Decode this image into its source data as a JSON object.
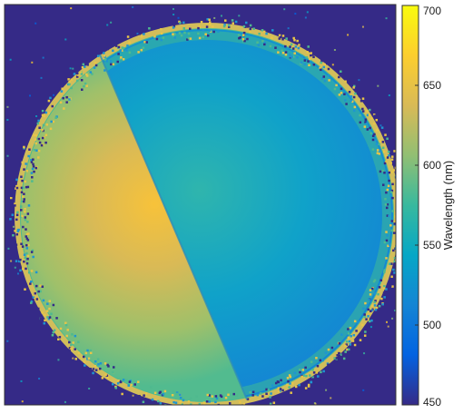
{
  "chart_data": {
    "type": "heatmap",
    "title": "",
    "xlabel": "",
    "ylabel": "",
    "colorbar": {
      "label": "Wavelength (nm)",
      "range": [
        450,
        700
      ],
      "ticks": [
        450,
        500,
        550,
        600,
        650,
        700
      ],
      "colormap": "parula",
      "position": "right"
    },
    "image": {
      "description_regions": [
        {
          "region": "background",
          "value_nm": 455
        },
        {
          "region": "left-half-of-disk",
          "value_nm_center": 645,
          "value_nm_edge": 575
        },
        {
          "region": "right-half-of-disk",
          "value_nm_center": 560,
          "value_nm_edge": 525
        },
        {
          "region": "outer-ring",
          "value_nm": 600
        }
      ]
    }
  },
  "colors": {
    "parula": [
      "#352a87",
      "#0363e1",
      "#1485d4",
      "#06a7c6",
      "#38b99e",
      "#92bf73",
      "#d9ba56",
      "#fcce2e",
      "#f9fb0e"
    ]
  }
}
